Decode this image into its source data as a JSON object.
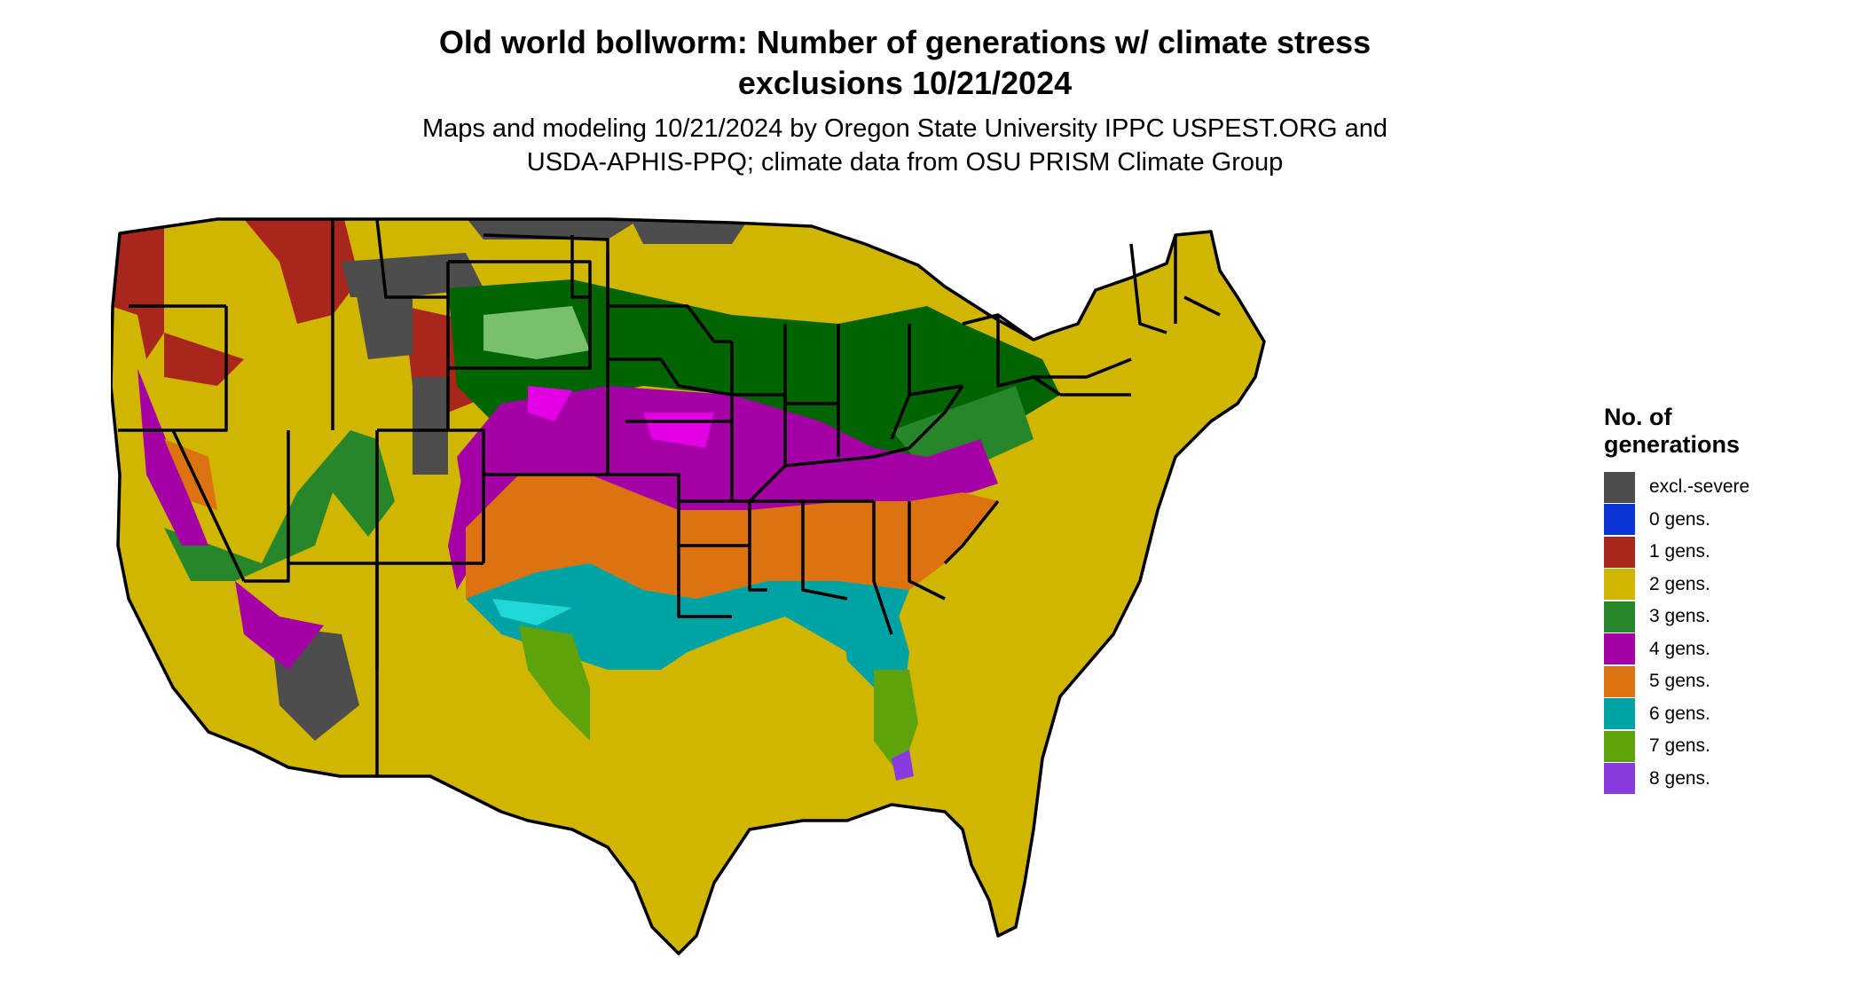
{
  "title_line1": "Old world bollworm: Number of generations w/ climate stress",
  "title_line2": "exclusions 10/21/2024",
  "subtitle_line1": "Maps and modeling 10/21/2024 by Oregon State University IPPC USPEST.ORG and",
  "subtitle_line2": "USDA-APHIS-PPQ; climate data from OSU PRISM Climate Group",
  "legend": {
    "title_line1": "No. of",
    "title_line2": "generations",
    "items": [
      {
        "label": "excl.-severe",
        "color": "#4d4d4d"
      },
      {
        "label": "0 gens.",
        "color": "#0b35d6"
      },
      {
        "label": "1 gens.",
        "color": "#a8261b"
      },
      {
        "label": "2 gens.",
        "color": "#d1b600"
      },
      {
        "label": "3 gens.",
        "color": "#27862a"
      },
      {
        "label": "4 gens.",
        "color": "#a500a5"
      },
      {
        "label": "5 gens.",
        "color": "#dc7310"
      },
      {
        "label": "6 gens.",
        "color": "#00a3a3"
      },
      {
        "label": "7 gens.",
        "color": "#5fa30c"
      },
      {
        "label": "8 gens.",
        "color": "#8a3be0"
      }
    ]
  }
}
